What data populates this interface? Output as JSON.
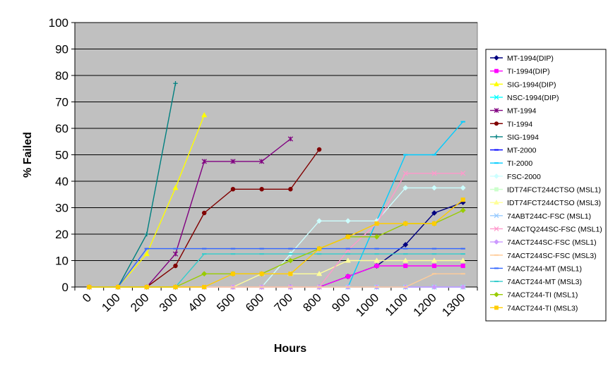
{
  "chart_data": {
    "type": "line",
    "title": "",
    "xlabel": "Hours",
    "ylabel": "% Failed",
    "ylim": [
      0,
      100
    ],
    "yticks": [
      0,
      10,
      20,
      30,
      40,
      50,
      60,
      70,
      80,
      90,
      100
    ],
    "categories": [
      "0",
      "100",
      "200",
      "300",
      "400",
      "500",
      "600",
      "700",
      "800",
      "900",
      "1000",
      "1100",
      "1200",
      "1300"
    ],
    "grid": "horizontal",
    "legend_position": "right",
    "plot_background": "#c0c0c0",
    "series": [
      {
        "name": "MT-1994(DIP)",
        "color": "#000080",
        "marker": "diamond",
        "values": [
          0,
          0,
          0,
          0,
          0,
          0,
          0,
          0,
          0,
          4,
          8,
          16,
          28,
          32
        ]
      },
      {
        "name": "TI-1994(DIP)",
        "color": "#ff00ff",
        "marker": "square",
        "values": [
          0,
          0,
          0,
          0,
          0,
          0,
          0,
          0,
          0,
          4,
          8,
          8,
          8,
          8
        ]
      },
      {
        "name": "SIG-1994(DIP)",
        "color": "#ffff00",
        "marker": "triangle",
        "values": [
          0,
          0,
          12.5,
          37.5,
          65,
          null,
          null,
          null,
          null,
          null,
          null,
          null,
          null,
          null
        ]
      },
      {
        "name": "NSC-1994(DIP)",
        "color": "#00ffff",
        "marker": "x",
        "values": [
          0,
          0,
          0,
          0,
          0,
          0,
          0,
          0,
          0,
          0,
          0,
          0,
          0,
          0
        ]
      },
      {
        "name": "MT-1994",
        "color": "#800080",
        "marker": "star",
        "values": [
          0,
          0,
          0,
          12.5,
          47.5,
          47.5,
          47.5,
          56,
          null,
          null,
          null,
          null,
          null,
          null
        ]
      },
      {
        "name": "TI-1994",
        "color": "#800000",
        "marker": "circle",
        "values": [
          0,
          0,
          0,
          8,
          28,
          37,
          37,
          37,
          52,
          null,
          null,
          null,
          null,
          null
        ]
      },
      {
        "name": "SIG-1994",
        "color": "#008080",
        "marker": "plus",
        "values": [
          0,
          0,
          20,
          77,
          null,
          null,
          null,
          null,
          null,
          null,
          null,
          null,
          null,
          null
        ]
      },
      {
        "name": "MT-2000",
        "color": "#0000ff",
        "marker": "dash",
        "values": [
          0,
          0,
          0,
          0,
          0,
          0,
          0,
          0,
          0,
          0,
          0,
          0,
          0,
          0
        ]
      },
      {
        "name": "TI-2000",
        "color": "#00ccff",
        "marker": "dash",
        "values": [
          0,
          0,
          0,
          0,
          0,
          0,
          0,
          0,
          0,
          0,
          25,
          50,
          50,
          62.5
        ]
      },
      {
        "name": "FSC-2000",
        "color": "#ccffff",
        "marker": "diamond",
        "values": [
          0,
          0,
          0,
          0,
          0,
          0,
          0,
          12.5,
          25,
          25,
          25,
          37.5,
          37.5,
          37.5
        ]
      },
      {
        "name": "IDT74FCT244CTSO (MSL1)",
        "color": "#ccffcc",
        "marker": "square",
        "values": [
          0,
          0,
          0,
          0,
          0,
          0,
          0,
          0,
          0,
          0,
          0,
          0,
          0,
          0
        ]
      },
      {
        "name": "IDT74FCT244CTSO (MSL3)",
        "color": "#ffff99",
        "marker": "triangle",
        "values": [
          0,
          0,
          0,
          0,
          0,
          0,
          5,
          5,
          5,
          10,
          10,
          10,
          10,
          10
        ]
      },
      {
        "name": "74ABT244C-FSC (MSL1)",
        "color": "#99ccff",
        "marker": "x",
        "values": [
          0,
          0,
          0,
          0,
          0,
          0,
          0,
          0,
          0,
          0,
          0,
          0,
          0,
          0
        ]
      },
      {
        "name": "74ACTQ244SC-FSC (MSL1)",
        "color": "#ff99cc",
        "marker": "x",
        "values": [
          0,
          0,
          0,
          0,
          0,
          0,
          0,
          0,
          0,
          14,
          24,
          43,
          43,
          43
        ]
      },
      {
        "name": "74ACT244SC-FSC (MSL1)",
        "color": "#cc99ff",
        "marker": "diamond",
        "values": [
          0,
          0,
          0,
          0,
          0,
          0,
          0,
          0,
          0,
          0,
          0,
          0,
          0,
          0
        ]
      },
      {
        "name": "74ACT244SC-FSC (MSL3)",
        "color": "#ffcc99",
        "marker": "dash",
        "values": [
          0,
          0,
          0,
          0,
          0,
          0,
          0,
          0,
          0,
          0,
          0,
          0,
          5,
          5
        ]
      },
      {
        "name": "74ACT244-MT (MSL1)",
        "color": "#3366ff",
        "marker": "dash",
        "values": [
          0,
          0,
          14.5,
          14.5,
          14.5,
          14.5,
          14.5,
          14.5,
          14.5,
          14.5,
          14.5,
          14.5,
          14.5,
          14.5
        ]
      },
      {
        "name": "74ACT244-MT (MSL3)",
        "color": "#33cccc",
        "marker": "dash",
        "values": [
          0,
          0,
          0,
          0,
          12.5,
          12.5,
          12.5,
          12.5,
          12.5,
          12.5,
          12.5,
          12.5,
          12.5,
          12.5
        ]
      },
      {
        "name": "74ACT244-TI (MSL1)",
        "color": "#99cc00",
        "marker": "diamond",
        "values": [
          0,
          0,
          0,
          0,
          5,
          5,
          5,
          10,
          14.5,
          19,
          19,
          24,
          24,
          29
        ]
      },
      {
        "name": "74ACT244-TI (MSL3)",
        "color": "#ffcc00",
        "marker": "square",
        "values": [
          0,
          0,
          0,
          0,
          0,
          5,
          5,
          5,
          14.5,
          19,
          24,
          24,
          24,
          33
        ]
      }
    ]
  }
}
